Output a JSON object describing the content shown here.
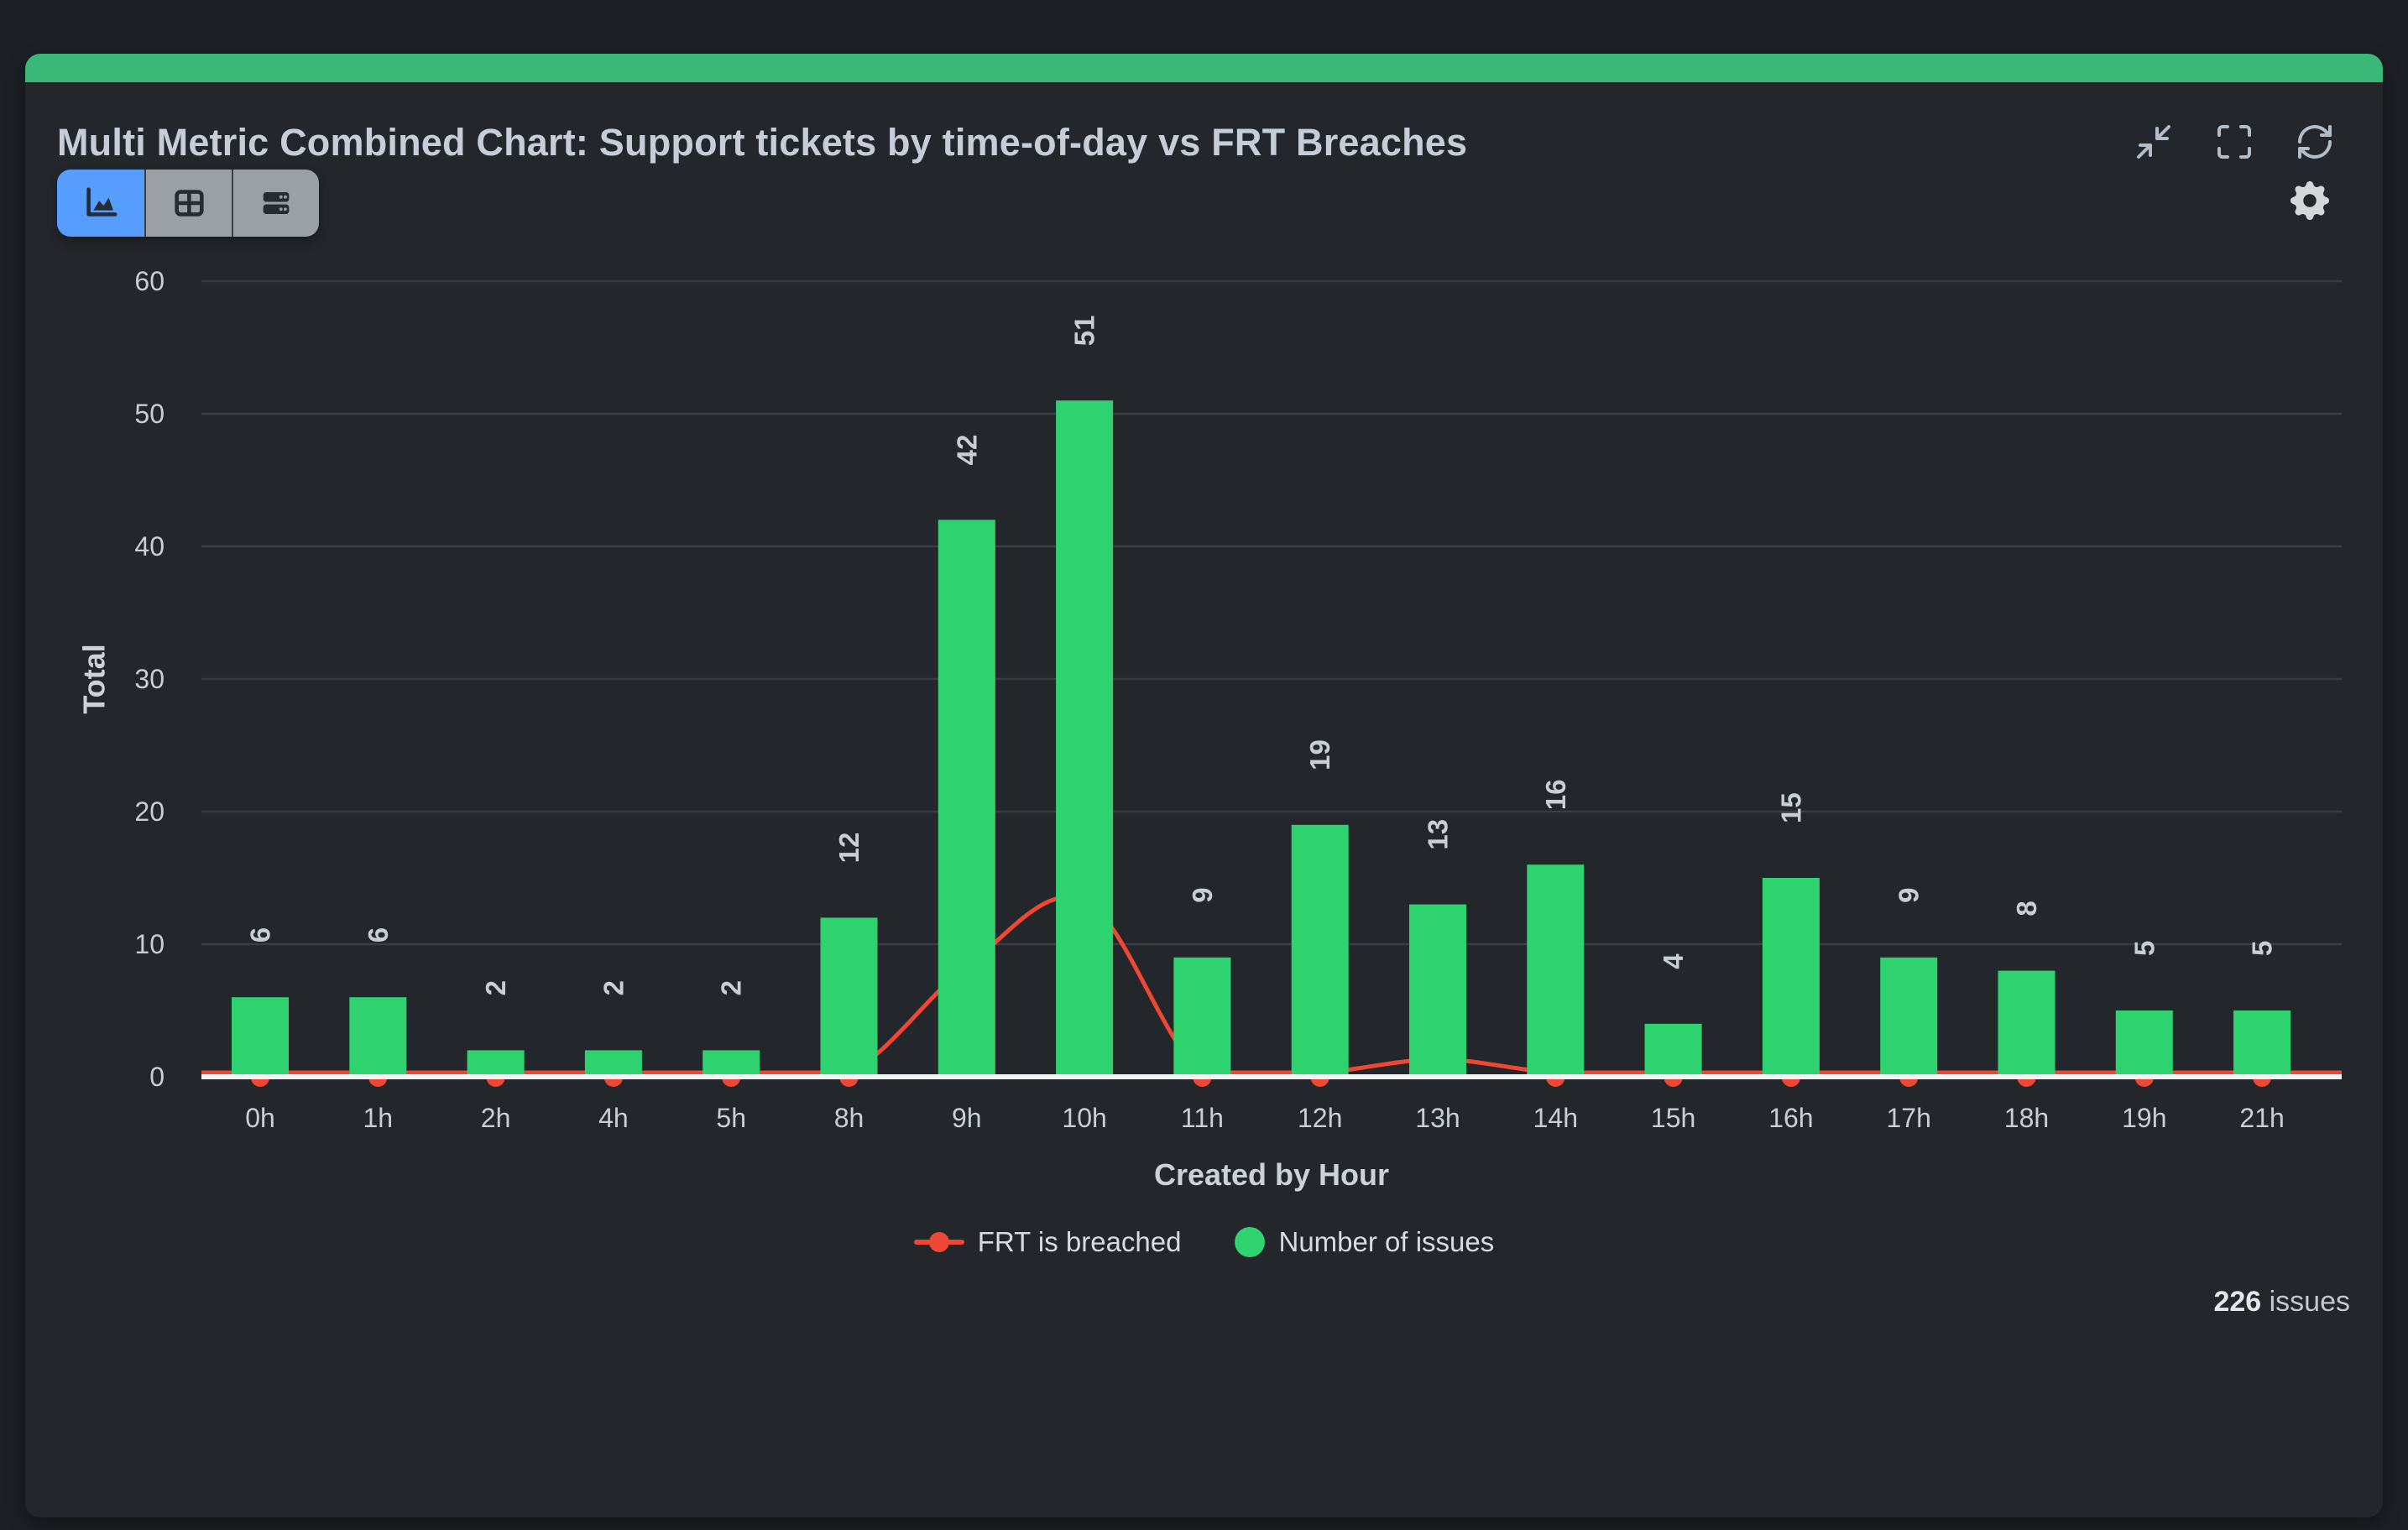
{
  "header": {
    "title": "Multi Metric Combined Chart: Support tickets by time-of-day vs FRT Breaches",
    "controls": [
      "minimize-icon",
      "fullscreen-icon",
      "refresh-icon"
    ]
  },
  "toolbar": {
    "view_buttons": [
      {
        "icon": "area-chart-icon",
        "active": true
      },
      {
        "icon": "table-icon",
        "active": false
      },
      {
        "icon": "rows-icon",
        "active": false
      }
    ],
    "settings_icon": "gear-icon"
  },
  "chart_data": {
    "type": "bar+line",
    "categories": [
      "0h",
      "1h",
      "2h",
      "4h",
      "5h",
      "8h",
      "9h",
      "10h",
      "11h",
      "12h",
      "13h",
      "14h",
      "15h",
      "16h",
      "17h",
      "18h",
      "19h",
      "21h"
    ],
    "series": [
      {
        "name": "Number of issues",
        "type": "bar",
        "color": "#2ed36f",
        "values": [
          6,
          6,
          2,
          2,
          2,
          12,
          42,
          51,
          9,
          19,
          13,
          16,
          4,
          15,
          9,
          8,
          5,
          5
        ]
      },
      {
        "name": "FRT is breached",
        "type": "line",
        "color": "#ee4733",
        "values": [
          0,
          0,
          0,
          0,
          0,
          0,
          8,
          13,
          0,
          0,
          1,
          0,
          0,
          0,
          0,
          0,
          0,
          0
        ]
      }
    ],
    "xlabel": "Created by Hour",
    "ylabel": "Total",
    "ylim": [
      0,
      60
    ],
    "yticks": [
      0,
      10,
      20,
      30,
      40,
      50,
      60
    ],
    "grid": true,
    "legend_position": "bottom"
  },
  "legend": [
    {
      "label": "FRT is breached",
      "color": "#ee4733",
      "marker": "line-dot"
    },
    {
      "label": "Number of issues",
      "color": "#2ed36f",
      "marker": "dot"
    }
  ],
  "footer": {
    "count": "226",
    "unit": "issues"
  }
}
